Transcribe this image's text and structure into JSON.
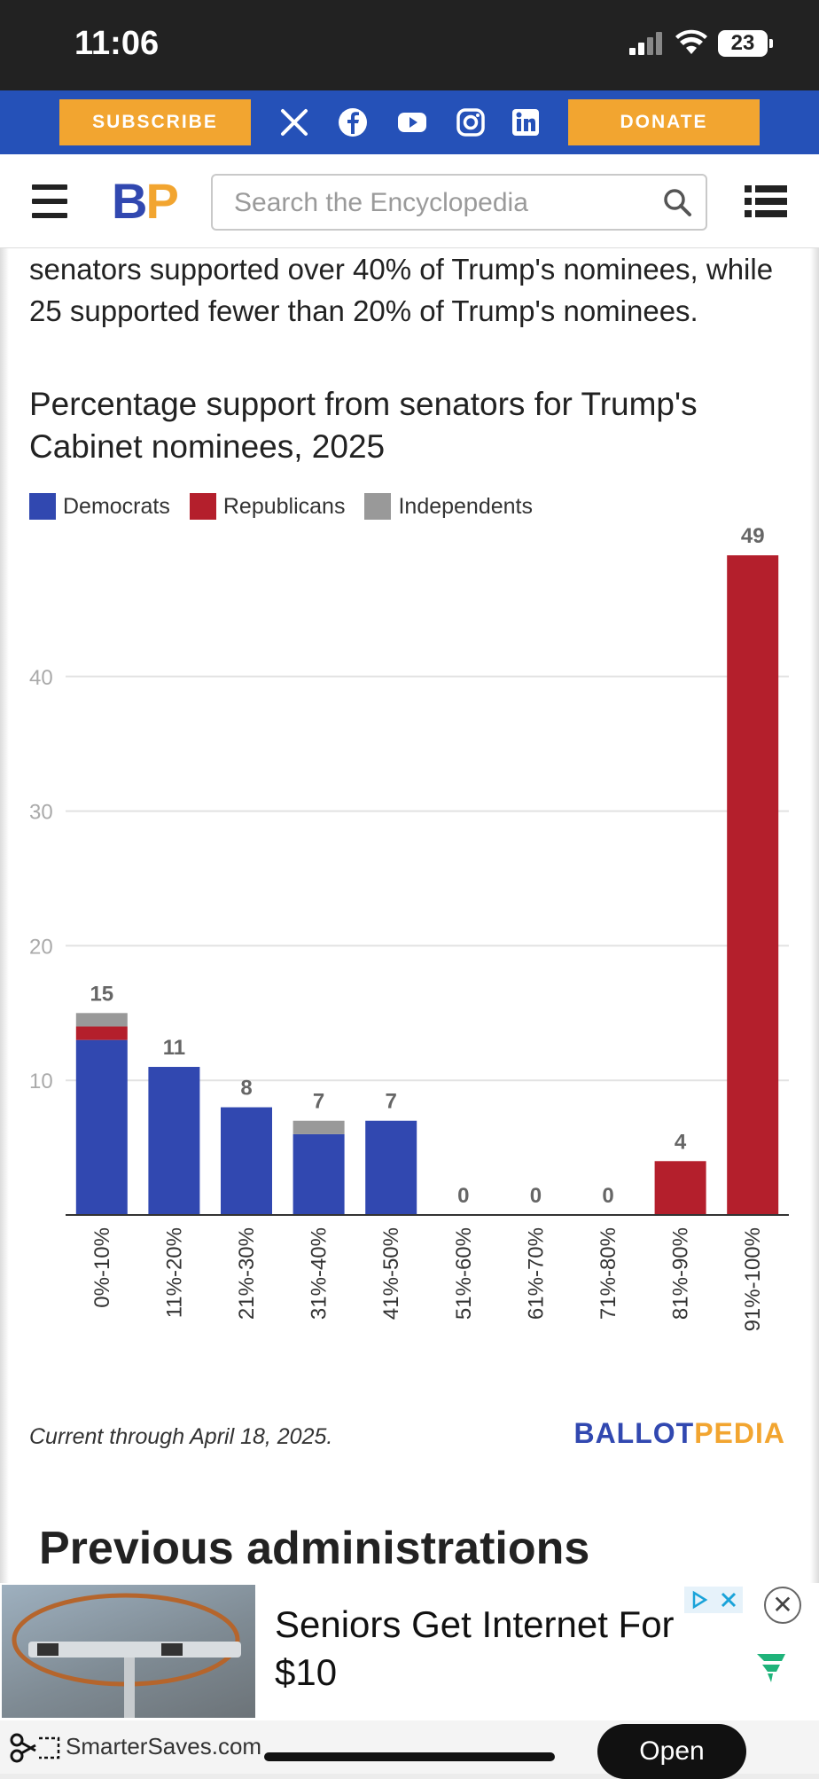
{
  "status_bar": {
    "time": "11:06",
    "battery": "23"
  },
  "promo": {
    "subscribe_label": "SUBSCRIBE",
    "donate_label": "DONATE"
  },
  "header": {
    "logo_b": "B",
    "logo_p": "P",
    "search_placeholder": "Search the Encyclopedia"
  },
  "article": {
    "intro": "senators supported over 40% of Trump's nominees, while 25 supported fewer than 20% of Trump's nominees.",
    "caption": "Current through April 18, 2025.",
    "brand_ballot": "BALLOT",
    "brand_pedia": "PEDIA",
    "section_heading": "Previous administrations"
  },
  "chart_data": {
    "type": "bar",
    "stacked": true,
    "title": "Percentage support from senators for Trump's Cabinet nominees, 2025",
    "categories": [
      "0%-10%",
      "11%-20%",
      "21%-30%",
      "31%-40%",
      "41%-50%",
      "51%-60%",
      "61%-70%",
      "71%-80%",
      "81%-90%",
      "91%-100%"
    ],
    "series": [
      {
        "name": "Democrats",
        "color": "#3148b0",
        "values": [
          13,
          11,
          8,
          6,
          7,
          0,
          0,
          0,
          0,
          0
        ]
      },
      {
        "name": "Republicans",
        "color": "#b41f2c",
        "values": [
          1,
          0,
          0,
          0,
          0,
          0,
          0,
          0,
          4,
          49
        ]
      },
      {
        "name": "Independents",
        "color": "#999999",
        "values": [
          1,
          0,
          0,
          1,
          0,
          0,
          0,
          0,
          0,
          0
        ]
      }
    ],
    "totals": [
      15,
      11,
      8,
      7,
      7,
      0,
      0,
      0,
      4,
      49
    ],
    "yticks": [
      10,
      20,
      30,
      40
    ],
    "ylim": [
      0,
      50
    ],
    "legend_position": "top-left",
    "grid": true
  },
  "ad": {
    "headline": "Seniors Get Internet For $10",
    "domain": "SmarterSaves.com",
    "open_label": "Open",
    "close_label": "✕"
  }
}
